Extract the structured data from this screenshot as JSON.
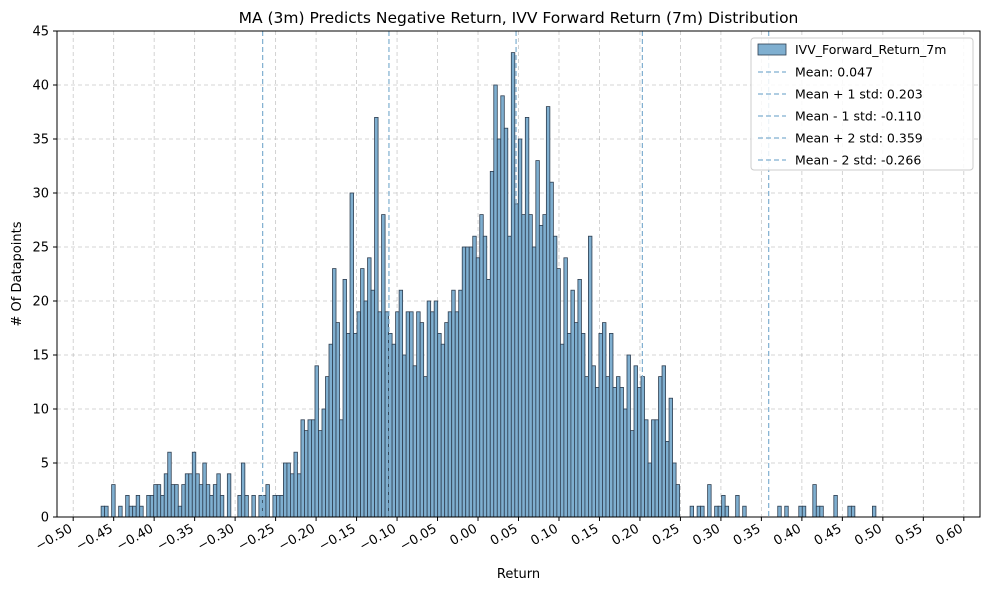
{
  "chart_data": {
    "type": "bar",
    "title": "MA (3m) Predicts Negative Return, IVV Forward Return (7m) Distribution",
    "xlabel": "Return",
    "ylabel": "# Of Datapoints",
    "xlim": [
      -0.52,
      0.62
    ],
    "ylim": [
      0,
      45
    ],
    "x_ticks": [
      -0.5,
      -0.45,
      -0.4,
      -0.35,
      -0.3,
      -0.25,
      -0.2,
      -0.15,
      -0.1,
      -0.05,
      0.0,
      0.05,
      0.1,
      0.15,
      0.2,
      0.25,
      0.3,
      0.35,
      0.4,
      0.45,
      0.5,
      0.55,
      0.6
    ],
    "x_tick_labels": [
      "−0.50",
      "−0.45",
      "−0.40",
      "−0.35",
      "−0.30",
      "−0.25",
      "−0.20",
      "−0.15",
      "−0.10",
      "−0.05",
      "0.00",
      "0.05",
      "0.10",
      "0.15",
      "0.20",
      "0.25",
      "0.30",
      "0.35",
      "0.40",
      "0.45",
      "0.50",
      "0.55",
      "0.60"
    ],
    "y_ticks": [
      0,
      5,
      10,
      15,
      20,
      25,
      30,
      35,
      40,
      45
    ],
    "grid": true,
    "legend_position": "top-right",
    "bin_start": -0.4655,
    "bin_width": 0.00433,
    "counts": [
      1,
      1,
      0,
      3,
      0,
      1,
      0,
      2,
      1,
      1,
      2,
      1,
      0,
      2,
      2,
      3,
      3,
      2,
      4,
      6,
      3,
      3,
      1,
      3,
      4,
      4,
      6,
      4,
      3,
      5,
      3,
      2,
      3,
      4,
      2,
      0,
      4,
      0,
      0,
      2,
      5,
      2,
      0,
      2,
      0,
      2,
      2,
      3,
      0,
      2,
      2,
      2,
      5,
      5,
      4,
      6,
      4,
      9,
      8,
      9,
      9,
      14,
      8,
      10,
      13,
      16,
      23,
      18,
      9,
      22,
      17,
      30,
      17,
      19,
      23,
      20,
      24,
      21,
      37,
      19,
      28,
      19,
      17,
      16,
      19,
      21,
      15,
      19,
      19,
      14,
      19,
      18,
      13,
      20,
      19,
      20,
      17,
      16,
      18,
      19,
      21,
      19,
      21,
      25,
      25,
      25,
      26,
      24,
      28,
      26,
      22,
      32,
      40,
      35,
      39,
      36,
      26,
      43,
      29,
      35,
      28,
      37,
      28,
      25,
      33,
      27,
      28,
      38,
      31,
      26,
      23,
      16,
      24,
      17,
      21,
      18,
      22,
      17,
      13,
      26,
      14,
      12,
      17,
      18,
      13,
      17,
      12,
      13,
      12,
      10,
      15,
      8,
      14,
      12,
      13,
      9,
      5,
      9,
      9,
      13,
      14,
      7,
      11,
      5,
      3,
      0,
      0,
      0,
      1,
      0,
      1,
      1,
      0,
      3,
      0,
      1,
      1,
      2,
      1,
      0,
      0,
      2,
      0,
      1,
      0,
      0,
      0,
      0,
      0,
      0,
      0,
      0,
      0,
      1,
      0,
      1,
      0,
      0,
      0,
      1,
      1,
      0,
      0,
      3,
      1,
      1,
      0,
      0,
      0,
      2,
      0,
      0,
      0,
      1,
      1,
      0,
      0,
      0,
      0,
      0,
      1,
      0,
      0,
      0,
      0
    ],
    "series": [
      {
        "name": "IVV_Forward_Return_7m",
        "type": "histogram",
        "color": "#7fafd0",
        "edge_color": "#2e3e50"
      }
    ],
    "reference_lines": [
      {
        "name": "Mean",
        "value": 0.047,
        "label": "Mean: 0.047"
      },
      {
        "name": "Mean + 1 std",
        "value": 0.203,
        "label": "Mean + 1 std: 0.203"
      },
      {
        "name": "Mean - 1 std",
        "value": -0.11,
        "label": "Mean - 1 std: -0.110"
      },
      {
        "name": "Mean + 2 std",
        "value": 0.359,
        "label": "Mean + 2 std: 0.359"
      },
      {
        "name": "Mean - 2 std",
        "value": -0.266,
        "label": "Mean - 2 std: -0.266"
      }
    ],
    "reference_line_color": "#7fafd0"
  }
}
